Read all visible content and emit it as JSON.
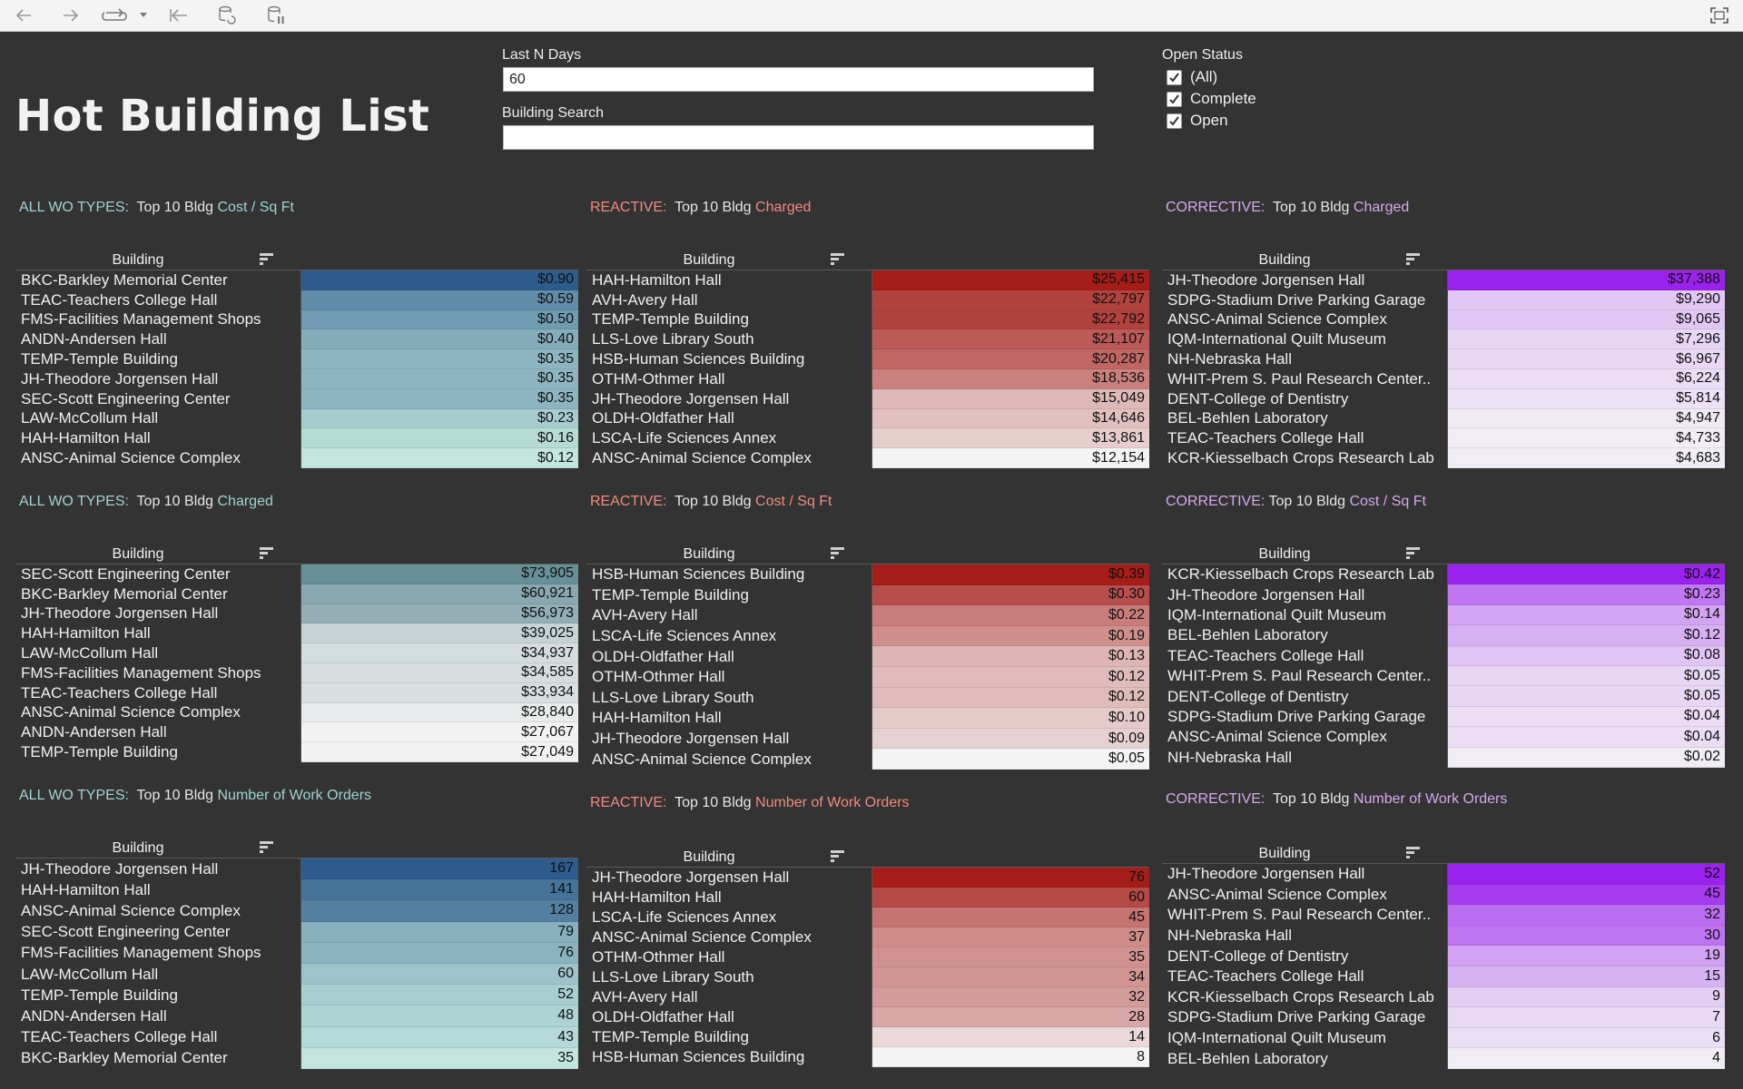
{
  "page": {
    "title": "Hot Building List"
  },
  "filters": {
    "last_n_days": {
      "label": "Last N Days",
      "value": "60"
    },
    "building_search": {
      "label": "Building Search",
      "value": ""
    },
    "open_status": {
      "label": "Open Status",
      "options": [
        {
          "label": "(All)",
          "checked": true
        },
        {
          "label": "Complete",
          "checked": true
        },
        {
          "label": "Open",
          "checked": true
        }
      ]
    }
  },
  "colors": {
    "all_accent": "#9fd3d2",
    "reactive_accent": "#f08a7e",
    "corrective_accent": "#d6a8ec",
    "blue_low": "#c2e6de",
    "blue_high": "#2d5b8b",
    "gray_low": "#f2f2f2",
    "gray_high": "#678f98",
    "red_low": "#f4f4f4",
    "red_high": "#a51d18",
    "purple_low": "#f1edf5",
    "purple_high": "#9b22ee"
  },
  "panels": [
    {
      "id": "all-cost-sqft",
      "prefix": "ALL WO TYPES:",
      "mid": "  Top 10 Bldg ",
      "metric": "Cost / Sq Ft",
      "accent": "all",
      "scale": "blue",
      "header": "Building",
      "rows": [
        {
          "name": "BKC-Barkley Memorial Center",
          "value": "$0.90",
          "num": 0.9
        },
        {
          "name": "TEAC-Teachers College Hall",
          "value": "$0.59",
          "num": 0.59
        },
        {
          "name": "FMS-Facilities Management Shops",
          "value": "$0.50",
          "num": 0.5
        },
        {
          "name": "ANDN-Andersen Hall",
          "value": "$0.40",
          "num": 0.4
        },
        {
          "name": "TEMP-Temple Building",
          "value": "$0.35",
          "num": 0.35
        },
        {
          "name": "JH-Theodore Jorgensen Hall",
          "value": "$0.35",
          "num": 0.35
        },
        {
          "name": "SEC-Scott Engineering Center",
          "value": "$0.35",
          "num": 0.35
        },
        {
          "name": "LAW-McCollum Hall",
          "value": "$0.23",
          "num": 0.23
        },
        {
          "name": "HAH-Hamilton Hall",
          "value": "$0.16",
          "num": 0.16
        },
        {
          "name": "ANSC-Animal Science Complex",
          "value": "$0.12",
          "num": 0.12
        }
      ]
    },
    {
      "id": "reactive-charged",
      "prefix": "REACTIVE:",
      "mid": "  Top 10 Bldg ",
      "metric": "Charged",
      "accent": "reactive",
      "scale": "red",
      "header": "Building",
      "rows": [
        {
          "name": "HAH-Hamilton Hall",
          "value": "$25,415",
          "num": 25415
        },
        {
          "name": "AVH-Avery Hall",
          "value": "$22,797",
          "num": 22797
        },
        {
          "name": "TEMP-Temple Building",
          "value": "$22,792",
          "num": 22792
        },
        {
          "name": "LLS-Love Library South",
          "value": "$21,107",
          "num": 21107
        },
        {
          "name": "HSB-Human Sciences Building",
          "value": "$20,287",
          "num": 20287
        },
        {
          "name": "OTHM-Othmer Hall",
          "value": "$18,536",
          "num": 18536
        },
        {
          "name": "JH-Theodore Jorgensen Hall",
          "value": "$15,049",
          "num": 15049
        },
        {
          "name": "OLDH-Oldfather Hall",
          "value": "$14,646",
          "num": 14646
        },
        {
          "name": "LSCA-Life Sciences Annex",
          "value": "$13,861",
          "num": 13861
        },
        {
          "name": "ANSC-Animal Science Complex",
          "value": "$12,154",
          "num": 12154
        }
      ]
    },
    {
      "id": "corrective-charged",
      "prefix": "CORRECTIVE:",
      "mid": "  Top 10 Bldg ",
      "metric": "Charged",
      "accent": "corrective",
      "scale": "purple",
      "header": "Building",
      "rows": [
        {
          "name": "JH-Theodore Jorgensen Hall",
          "value": "$37,388",
          "num": 37388
        },
        {
          "name": "SDPG-Stadium Drive Parking Garage",
          "value": "$9,290",
          "num": 9290
        },
        {
          "name": "ANSC-Animal Science Complex",
          "value": "$9,065",
          "num": 9065
        },
        {
          "name": "IQM-International Quilt Museum",
          "value": "$7,296",
          "num": 7296
        },
        {
          "name": "NH-Nebraska Hall",
          "value": "$6,967",
          "num": 6967
        },
        {
          "name": "WHIT-Prem S. Paul Research Center..",
          "value": "$6,224",
          "num": 6224
        },
        {
          "name": "DENT-College of Dentistry",
          "value": "$5,814",
          "num": 5814
        },
        {
          "name": "BEL-Behlen Laboratory",
          "value": "$4,947",
          "num": 4947
        },
        {
          "name": "TEAC-Teachers College Hall",
          "value": "$4,733",
          "num": 4733
        },
        {
          "name": "KCR-Kiesselbach Crops Research Lab",
          "value": "$4,683",
          "num": 4683
        }
      ]
    },
    {
      "id": "all-charged",
      "prefix": "ALL WO TYPES:",
      "mid": "  Top 10 Bldg ",
      "metric": "Charged",
      "accent": "all",
      "scale": "gray",
      "header": "Building",
      "rows": [
        {
          "name": "SEC-Scott Engineering Center",
          "value": "$73,905",
          "num": 73905
        },
        {
          "name": "BKC-Barkley Memorial Center",
          "value": "$60,921",
          "num": 60921
        },
        {
          "name": "JH-Theodore Jorgensen Hall",
          "value": "$56,973",
          "num": 56973
        },
        {
          "name": "HAH-Hamilton Hall",
          "value": "$39,025",
          "num": 39025
        },
        {
          "name": "LAW-McCollum Hall",
          "value": "$34,937",
          "num": 34937
        },
        {
          "name": "FMS-Facilities Management Shops",
          "value": "$34,585",
          "num": 34585
        },
        {
          "name": "TEAC-Teachers College Hall",
          "value": "$33,934",
          "num": 33934
        },
        {
          "name": "ANSC-Animal Science Complex",
          "value": "$28,840",
          "num": 28840
        },
        {
          "name": "ANDN-Andersen Hall",
          "value": "$27,067",
          "num": 27067
        },
        {
          "name": "TEMP-Temple Building",
          "value": "$27,049",
          "num": 27049
        }
      ]
    },
    {
      "id": "reactive-cost-sqft",
      "prefix": "REACTIVE:",
      "mid": "  Top 10 Bldg ",
      "metric": "Cost / Sq Ft",
      "accent": "reactive",
      "scale": "red",
      "header": "Building",
      "rows": [
        {
          "name": "HSB-Human Sciences Building",
          "value": "$0.39",
          "num": 0.39
        },
        {
          "name": "TEMP-Temple Building",
          "value": "$0.30",
          "num": 0.3
        },
        {
          "name": "AVH-Avery Hall",
          "value": "$0.22",
          "num": 0.22
        },
        {
          "name": "LSCA-Life Sciences Annex",
          "value": "$0.19",
          "num": 0.19
        },
        {
          "name": "OLDH-Oldfather Hall",
          "value": "$0.13",
          "num": 0.13
        },
        {
          "name": "OTHM-Othmer Hall",
          "value": "$0.12",
          "num": 0.12
        },
        {
          "name": "LLS-Love Library South",
          "value": "$0.12",
          "num": 0.12
        },
        {
          "name": "HAH-Hamilton Hall",
          "value": "$0.10",
          "num": 0.1
        },
        {
          "name": "JH-Theodore Jorgensen Hall",
          "value": "$0.09",
          "num": 0.09
        },
        {
          "name": "ANSC-Animal Science Complex",
          "value": "$0.05",
          "num": 0.05
        }
      ]
    },
    {
      "id": "corrective-cost-sqft",
      "prefix": "CORRECTIVE:",
      "mid": " Top 10 Bldg ",
      "metric": "Cost / Sq Ft",
      "accent": "corrective",
      "scale": "purple",
      "header": "Building",
      "rows": [
        {
          "name": "KCR-Kiesselbach Crops Research Lab",
          "value": "$0.42",
          "num": 0.42
        },
        {
          "name": "JH-Theodore Jorgensen Hall",
          "value": "$0.23",
          "num": 0.23
        },
        {
          "name": "IQM-International Quilt Museum",
          "value": "$0.14",
          "num": 0.14
        },
        {
          "name": "BEL-Behlen Laboratory",
          "value": "$0.12",
          "num": 0.12
        },
        {
          "name": "TEAC-Teachers College Hall",
          "value": "$0.08",
          "num": 0.08
        },
        {
          "name": "WHIT-Prem S. Paul Research Center..",
          "value": "$0.05",
          "num": 0.05
        },
        {
          "name": "DENT-College of Dentistry",
          "value": "$0.05",
          "num": 0.05
        },
        {
          "name": "SDPG-Stadium Drive Parking Garage",
          "value": "$0.04",
          "num": 0.04
        },
        {
          "name": "ANSC-Animal Science Complex",
          "value": "$0.04",
          "num": 0.04
        },
        {
          "name": "NH-Nebraska Hall",
          "value": "$0.02",
          "num": 0.02
        }
      ]
    },
    {
      "id": "all-num-wo",
      "prefix": "ALL WO TYPES:",
      "mid": "  Top 10 Bldg ",
      "metric": "Number of Work Orders",
      "accent": "all",
      "scale": "blue",
      "header": "Building",
      "rows": [
        {
          "name": "JH-Theodore Jorgensen Hall",
          "value": "167",
          "num": 167
        },
        {
          "name": "HAH-Hamilton Hall",
          "value": "141",
          "num": 141
        },
        {
          "name": "ANSC-Animal Science Complex",
          "value": "128",
          "num": 128
        },
        {
          "name": "SEC-Scott Engineering Center",
          "value": "79",
          "num": 79
        },
        {
          "name": "FMS-Facilities Management Shops",
          "value": "76",
          "num": 76
        },
        {
          "name": "LAW-McCollum Hall",
          "value": "60",
          "num": 60
        },
        {
          "name": "TEMP-Temple Building",
          "value": "52",
          "num": 52
        },
        {
          "name": "ANDN-Andersen Hall",
          "value": "48",
          "num": 48
        },
        {
          "name": "TEAC-Teachers College Hall",
          "value": "43",
          "num": 43
        },
        {
          "name": "BKC-Barkley Memorial Center",
          "value": "35",
          "num": 35
        }
      ]
    },
    {
      "id": "reactive-num-wo",
      "prefix": "REACTIVE:",
      "mid": "  Top 10 Bldg ",
      "metric": "Number of Work Orders",
      "accent": "reactive",
      "scale": "red",
      "header": "Building",
      "rows": [
        {
          "name": "JH-Theodore Jorgensen Hall",
          "value": "76",
          "num": 76
        },
        {
          "name": "HAH-Hamilton Hall",
          "value": "60",
          "num": 60
        },
        {
          "name": "LSCA-Life Sciences Annex",
          "value": "45",
          "num": 45
        },
        {
          "name": "ANSC-Animal Science Complex",
          "value": "37",
          "num": 37
        },
        {
          "name": "OTHM-Othmer Hall",
          "value": "35",
          "num": 35
        },
        {
          "name": "LLS-Love Library South",
          "value": "34",
          "num": 34
        },
        {
          "name": "AVH-Avery Hall",
          "value": "32",
          "num": 32
        },
        {
          "name": "OLDH-Oldfather Hall",
          "value": "28",
          "num": 28
        },
        {
          "name": "TEMP-Temple Building",
          "value": "14",
          "num": 14
        },
        {
          "name": "HSB-Human Sciences Building",
          "value": "8",
          "num": 8
        }
      ]
    },
    {
      "id": "corrective-num-wo",
      "prefix": "CORRECTIVE:",
      "mid": "  Top 10 Bldg ",
      "metric": "Number of Work Orders",
      "accent": "corrective",
      "scale": "purple",
      "header": "Building",
      "rows": [
        {
          "name": "JH-Theodore Jorgensen Hall",
          "value": "52",
          "num": 52
        },
        {
          "name": "ANSC-Animal Science Complex",
          "value": "45",
          "num": 45
        },
        {
          "name": "WHIT-Prem S. Paul Research Center..",
          "value": "32",
          "num": 32
        },
        {
          "name": "NH-Nebraska Hall",
          "value": "30",
          "num": 30
        },
        {
          "name": "DENT-College of Dentistry",
          "value": "19",
          "num": 19
        },
        {
          "name": "TEAC-Teachers College Hall",
          "value": "15",
          "num": 15
        },
        {
          "name": "KCR-Kiesselbach Crops Research Lab",
          "value": "9",
          "num": 9
        },
        {
          "name": "SDPG-Stadium Drive Parking Garage",
          "value": "7",
          "num": 7
        },
        {
          "name": "IQM-International Quilt Museum",
          "value": "6",
          "num": 6
        },
        {
          "name": "BEL-Behlen Laboratory",
          "value": "4",
          "num": 4
        }
      ]
    }
  ]
}
